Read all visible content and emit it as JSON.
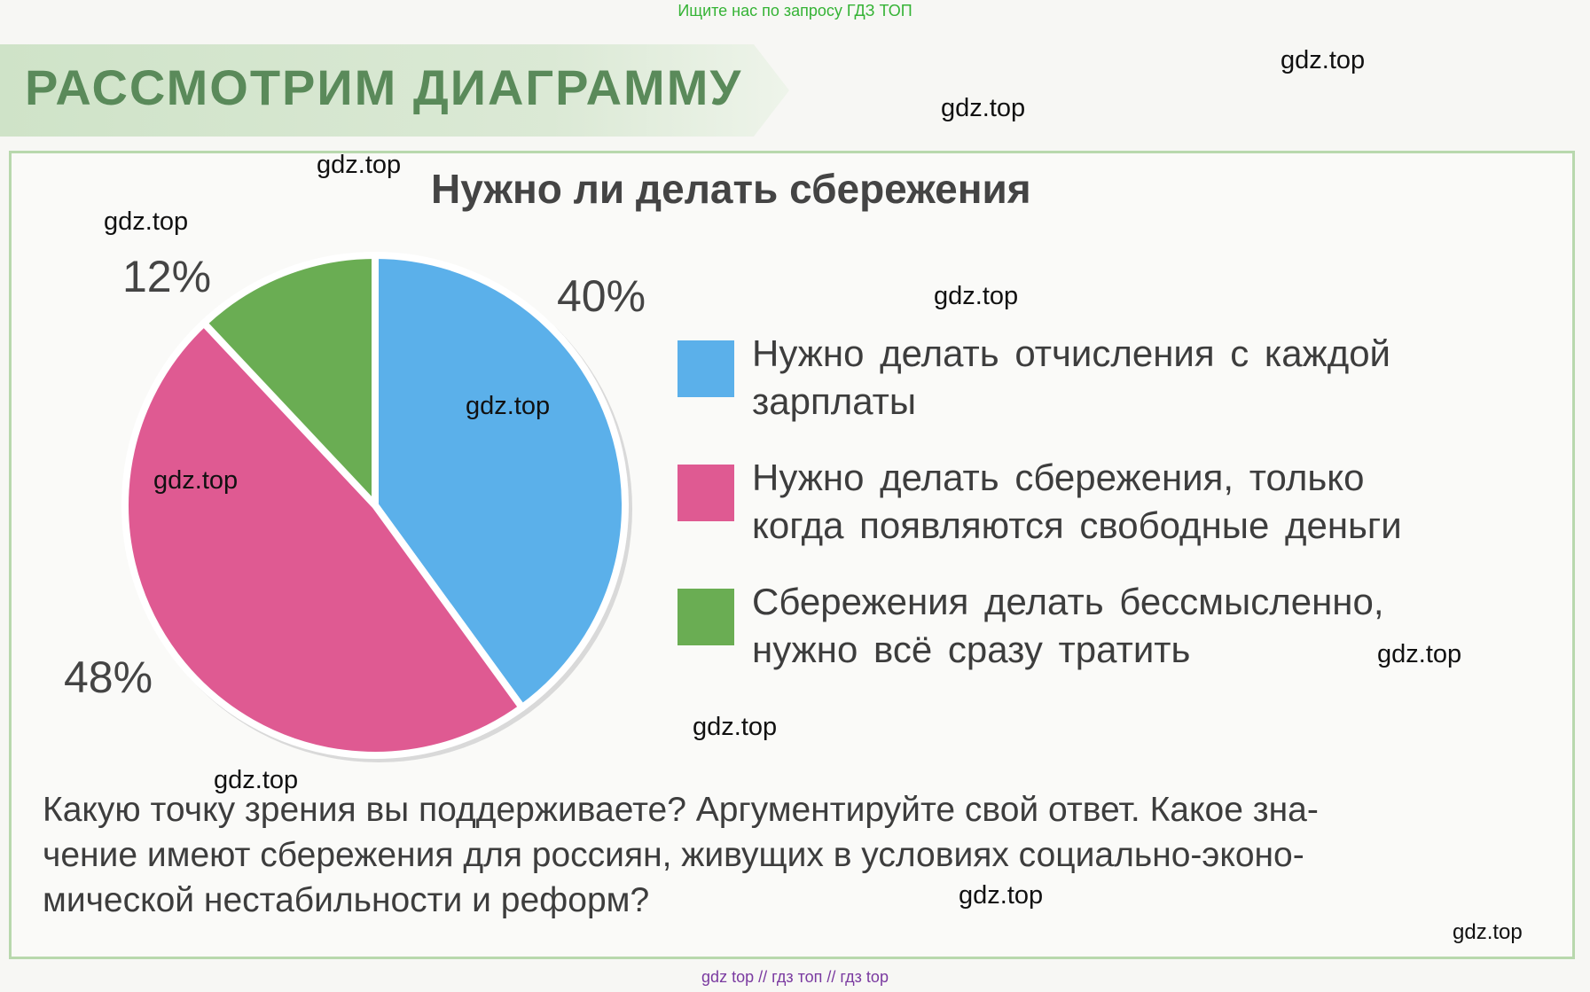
{
  "top_note": "Ищите нас по запросу ГДЗ ТОП",
  "banner": "РАССМОТРИМ ДИАГРАММУ",
  "chart_data": {
    "type": "pie",
    "title": "Нужно ли делать сбережения",
    "slices": [
      {
        "label": "Нужно делать отчисления с каждой зарплаты",
        "value": 40,
        "value_label": "40%",
        "color": "#5bb0ea"
      },
      {
        "label": "Нужно делать сбережения, только когда появляются свободные деньги",
        "value": 48,
        "value_label": "48%",
        "color": "#df5a92"
      },
      {
        "label": "Сбережения делать бессмысленно, нужно всё сразу тратить",
        "value": 12,
        "value_label": "12%",
        "color": "#6aad53"
      }
    ],
    "legend_placement": "right"
  },
  "legend": {
    "item1": {
      "line1": "Нужно делать отчисления с каждой",
      "line2": "зарплаты"
    },
    "item2": {
      "line1": "Нужно делать сбережения, только",
      "line2": "когда появляются свободные деньги"
    },
    "item3": {
      "line1": "Сбережения делать бессмысленно,",
      "line2": "нужно всё сразу тратить"
    }
  },
  "question": {
    "line1": "Какую точку зрения вы поддерживаете? Аргументируйте свой ответ. Какое зна-",
    "line2": "чение имеют сбережения для россиян, живущих в условиях социально-эконо-",
    "line3": "мической нестабильности и реформ?"
  },
  "watermark": "gdz.top",
  "footer": "gdz top  //  гдз топ  //  гдз top"
}
